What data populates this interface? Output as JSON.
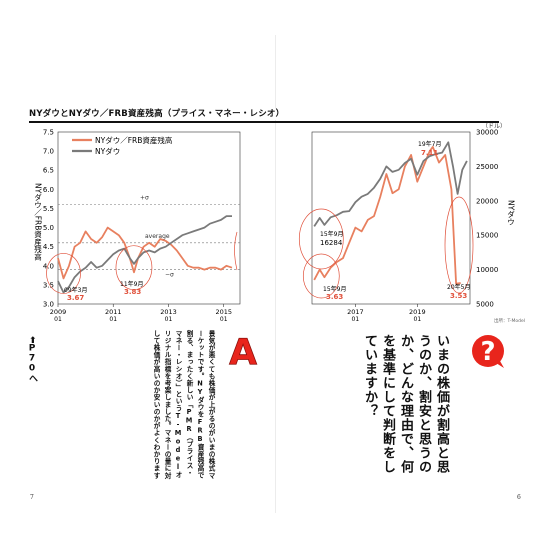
{
  "chart_title": "NYダウとNYダウ／FRB資産残高（プライス・マネー・レシオ）",
  "colors": {
    "ratio": "#e8805f",
    "dow": "#7a7a7a",
    "accent": "#e8251c"
  },
  "chart_data": [
    {
      "type": "line",
      "legend": [
        "NYダウ／FRB資産残高",
        "NYダウ"
      ],
      "ylabel": "NYダウ／FRB資産残高",
      "y_ticks": [
        "7.5",
        "7.0",
        "6.5",
        "6.0",
        "5.5",
        "5.0",
        "4.5",
        "4.0",
        "3.5",
        "3.0"
      ],
      "ylim": [
        3.0,
        7.5
      ],
      "x_ticks": [
        "2009\n01",
        "2011\n01",
        "2013\n01",
        "2015\n01"
      ],
      "series": [
        {
          "name": "NYダウ／FRB資産残高",
          "x": [
            2009.0,
            2009.2,
            2009.4,
            2009.6,
            2009.8,
            2010.0,
            2010.2,
            2010.4,
            2010.6,
            2010.8,
            2011.0,
            2011.2,
            2011.4,
            2011.6,
            2011.75,
            2011.9,
            2012.1,
            2012.3,
            2012.5,
            2012.7,
            2012.9,
            2013.1,
            2013.3,
            2013.5,
            2013.7,
            2013.9,
            2014.1,
            2014.3,
            2014.5,
            2014.7,
            2014.9,
            2015.1,
            2015.3
          ],
          "values": [
            4.2,
            3.67,
            4.0,
            4.5,
            4.6,
            4.9,
            4.7,
            4.6,
            4.75,
            5.0,
            4.9,
            4.8,
            4.6,
            4.2,
            3.83,
            4.2,
            4.5,
            4.6,
            4.5,
            4.7,
            4.65,
            4.55,
            4.4,
            4.2,
            4.0,
            3.95,
            3.95,
            3.9,
            3.95,
            3.95,
            3.9,
            4.0,
            3.95
          ]
        },
        {
          "name": "NYダウ",
          "x": [
            2009.0,
            2009.2,
            2009.4,
            2009.6,
            2009.8,
            2010.0,
            2010.2,
            2010.4,
            2010.6,
            2010.8,
            2011.0,
            2011.2,
            2011.4,
            2011.6,
            2011.75,
            2011.9,
            2012.1,
            2012.3,
            2012.5,
            2012.7,
            2012.9,
            2013.1,
            2013.3,
            2013.5,
            2013.7,
            2013.9,
            2014.1,
            2014.3,
            2014.5,
            2014.7,
            2014.9,
            2015.1,
            2015.3
          ],
          "values": [
            3.6,
            3.3,
            3.45,
            3.7,
            3.85,
            3.95,
            4.1,
            3.95,
            4.0,
            4.15,
            4.3,
            4.4,
            4.45,
            4.2,
            4.05,
            4.2,
            4.35,
            4.4,
            4.35,
            4.45,
            4.5,
            4.6,
            4.7,
            4.8,
            4.85,
            4.9,
            4.95,
            5.0,
            5.1,
            5.15,
            5.2,
            5.3,
            5.3
          ]
        }
      ],
      "ref_lines": [
        {
          "label": "+σ",
          "y": 5.6
        },
        {
          "label": "average",
          "y": 4.6
        },
        {
          "label": "−σ",
          "y": 3.9
        }
      ],
      "annotations": [
        {
          "label": "09年3月",
          "value": "3.67"
        },
        {
          "label": "11年9月",
          "value": "3.83"
        }
      ]
    },
    {
      "type": "line",
      "y_unit": "（ドル）",
      "ylabel": "NYダウ",
      "y_ticks": [
        "30000",
        "25000",
        "20000",
        "15000",
        "10000",
        "5000"
      ],
      "ylim": [
        5000,
        30000
      ],
      "x_ticks": [
        "2017\n01",
        "2019\n01"
      ],
      "series": [
        {
          "name": "NYダウ／FRB資産残高",
          "x": [
            2015.67,
            2015.85,
            2016.0,
            2016.2,
            2016.4,
            2016.6,
            2016.8,
            2017.0,
            2017.2,
            2017.4,
            2017.6,
            2017.8,
            2018.0,
            2018.2,
            2018.4,
            2018.6,
            2018.8,
            2019.0,
            2019.2,
            2019.4,
            2019.5,
            2019.7,
            2019.9,
            2020.1,
            2020.25,
            2020.4
          ],
          "values": [
            3.63,
            3.9,
            3.7,
            3.95,
            4.1,
            4.2,
            4.6,
            5.0,
            4.9,
            5.2,
            5.3,
            5.8,
            6.4,
            5.9,
            6.0,
            6.6,
            6.9,
            6.2,
            6.6,
            7.0,
            7.11,
            6.7,
            6.9,
            6.0,
            3.53,
            3.55
          ]
        },
        {
          "name": "NYダウ",
          "x": [
            2015.67,
            2015.85,
            2016.0,
            2016.2,
            2016.4,
            2016.6,
            2016.8,
            2017.0,
            2017.2,
            2017.4,
            2017.6,
            2017.8,
            2018.0,
            2018.2,
            2018.4,
            2018.6,
            2018.8,
            2019.0,
            2019.2,
            2019.4,
            2019.6,
            2019.8,
            2020.0,
            2020.15,
            2020.3,
            2020.45,
            2020.6
          ],
          "values": [
            16284,
            17500,
            16500,
            17600,
            17900,
            18400,
            18500,
            19800,
            20600,
            21000,
            21900,
            23200,
            25000,
            24200,
            24500,
            25500,
            26100,
            23800,
            25800,
            26500,
            26800,
            27000,
            28500,
            25000,
            21000,
            24500,
            25800
          ]
        }
      ],
      "annotations": [
        {
          "label": "15年9月",
          "value": "16284"
        },
        {
          "label": "15年9月",
          "value": "3.63"
        },
        {
          "label": "19年7月",
          "value": "7.11"
        },
        {
          "label": "20年5月",
          "value": "3.53"
        }
      ]
    }
  ],
  "source": "出所：T-Model",
  "question_text": "いまの株価が割高と思うのか、割安と思うのか、どんな理由で、何を基準にして判断をしていますか？",
  "answer_text": "景気が悪くても株価が上がるのがいまの株式マーケットです。NYダウをFRB資産残高で割る、まったく新しい「PMR（プライス・マネー・レシオ）」というT-Modelオリジナル指標を考案しました。マネーの量に対して株価が高いのか安いのかがよくわかります",
  "page_ref": "P70へ",
  "page_left": "7",
  "page_right": "6",
  "q_mark": "?",
  "a_mark": "A"
}
